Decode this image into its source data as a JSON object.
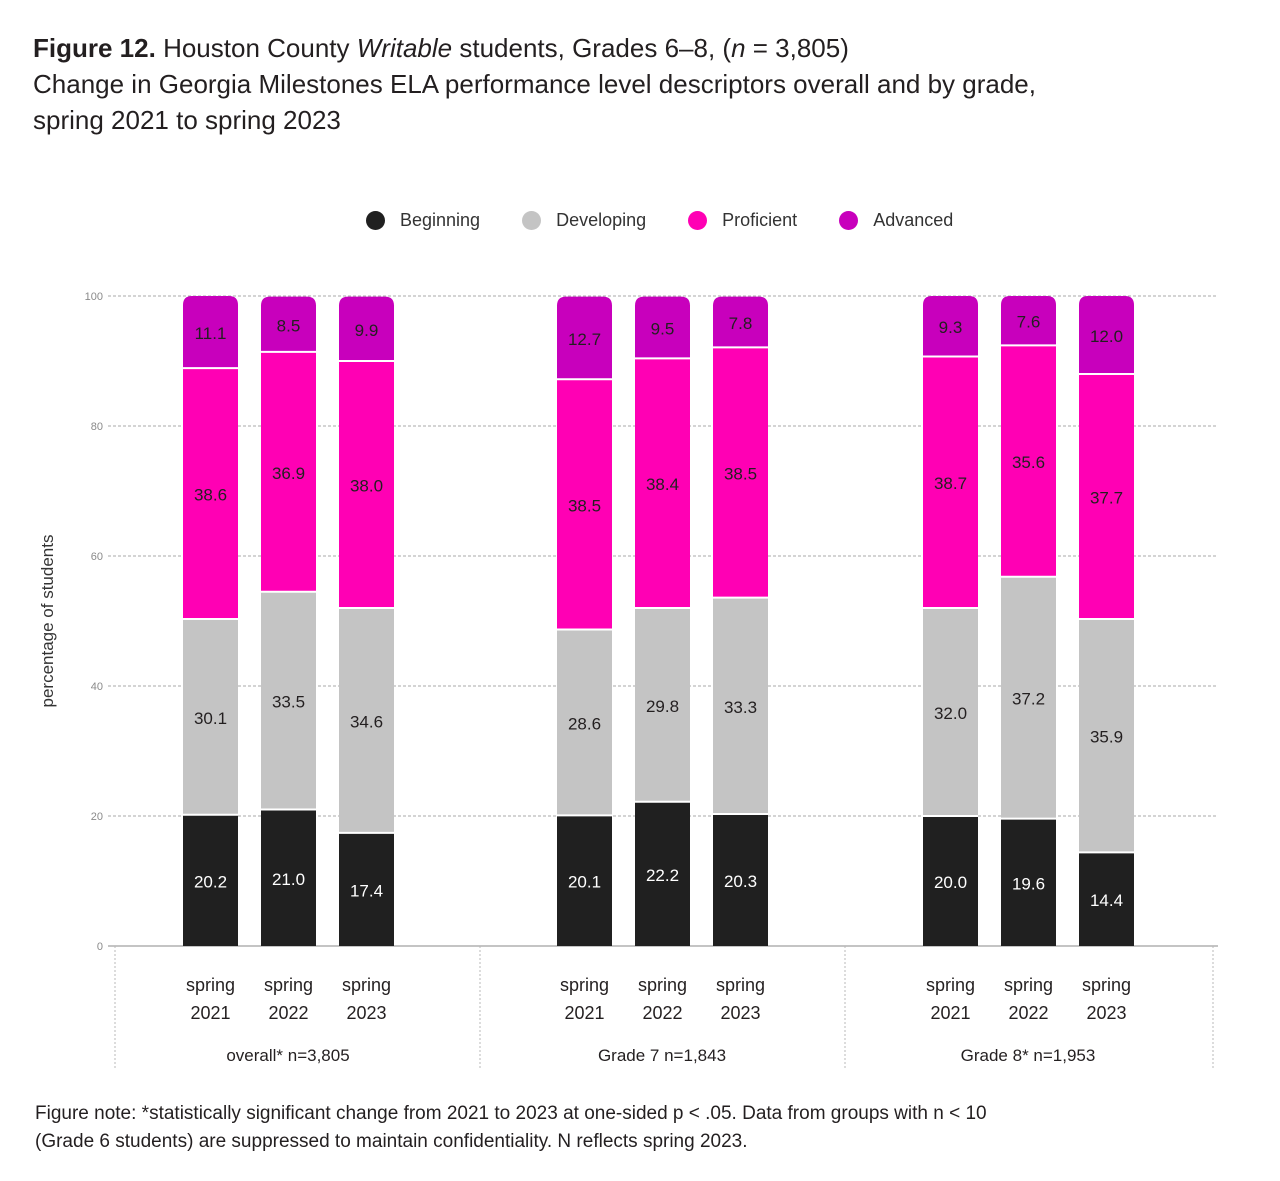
{
  "title": {
    "figure_label": "Figure 12.",
    "line1_pre": "Houston County",
    "line1_italic": "Writable",
    "line1_post": "students, Grades 6–8, (",
    "line1_n": "n",
    "line1_end": " = 3,805)",
    "line2": "Change in Georgia Milestones ELA performance level descriptors overall and by grade,",
    "line3": "spring 2021 to spring 2023"
  },
  "legend": [
    {
      "label": "Beginning",
      "color": "#202020"
    },
    {
      "label": "Developing",
      "color": "#c4c4c4"
    },
    {
      "label": "Proficient",
      "color": "#ff00b4"
    },
    {
      "label": "Advanced",
      "color": "#c800bc"
    }
  ],
  "note": {
    "line1": "Figure note: *statistically significant change from 2021 to 2023 at one-sided p < .05. Data from groups with n < 10",
    "line2": "(Grade 6 students) are suppressed to maintain confidentiality. N reflects spring 2023."
  },
  "chart_data": {
    "type": "bar",
    "stacked": true,
    "title": "Change in Georgia Milestones ELA performance level descriptors overall and by grade, spring 2021 to spring 2023",
    "xlabel": "",
    "ylabel": "percentage of students",
    "ylim": [
      0,
      100
    ],
    "yticks": [
      0,
      20,
      40,
      60,
      80,
      100
    ],
    "grid": true,
    "legend_position": "top-center",
    "groups": [
      {
        "label": "overall* n=3,805",
        "categories": [
          "spring\n2021",
          "spring\n2022",
          "spring\n2023"
        ]
      },
      {
        "label": "Grade 7 n=1,843",
        "categories": [
          "spring\n2021",
          "spring\n2022",
          "spring\n2023"
        ]
      },
      {
        "label": "Grade 8* n=1,953",
        "categories": [
          "spring\n2021",
          "spring\n2022",
          "spring\n2023"
        ]
      }
    ],
    "categories": [
      "overall spring 2021",
      "overall spring 2022",
      "overall spring 2023",
      "Grade 7 spring 2021",
      "Grade 7 spring 2022",
      "Grade 7 spring 2023",
      "Grade 8 spring 2021",
      "Grade 8 spring 2022",
      "Grade 8 spring 2023"
    ],
    "series": [
      {
        "name": "Beginning",
        "color": "#202020",
        "label_color": "#ffffff",
        "values": [
          20.2,
          21.0,
          17.4,
          20.1,
          22.2,
          20.3,
          20.0,
          19.6,
          14.4
        ]
      },
      {
        "name": "Developing",
        "color": "#c4c4c4",
        "label_color": "#231f20",
        "values": [
          30.1,
          33.5,
          34.6,
          28.6,
          29.8,
          33.3,
          32.0,
          37.2,
          35.9
        ]
      },
      {
        "name": "Proficient",
        "color": "#ff00b4",
        "label_color": "#231f20",
        "values": [
          38.6,
          36.9,
          38.0,
          38.5,
          38.4,
          38.5,
          38.7,
          35.6,
          37.7
        ]
      },
      {
        "name": "Advanced",
        "color": "#c800bc",
        "label_color": "#231f20",
        "values": [
          11.1,
          8.5,
          9.9,
          12.7,
          9.5,
          7.8,
          9.3,
          7.6,
          12.0
        ]
      }
    ],
    "year_labels": [
      "spring",
      "2021",
      "spring",
      "2022",
      "spring",
      "2023"
    ]
  }
}
